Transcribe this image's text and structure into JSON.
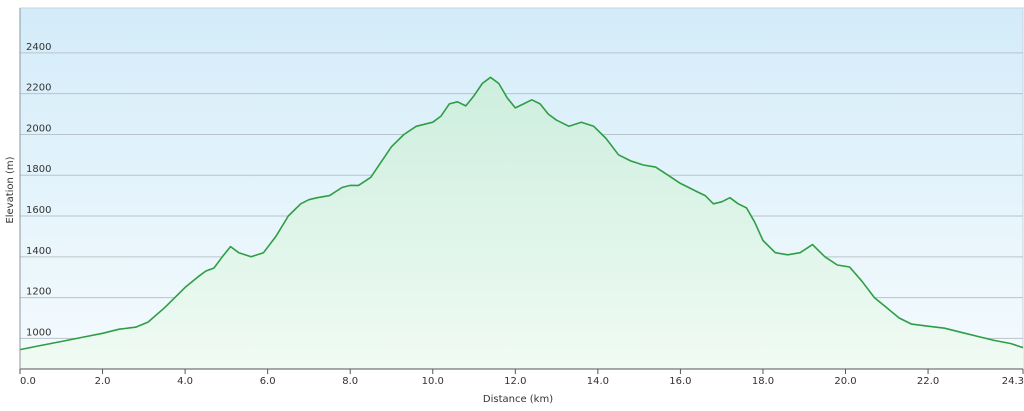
{
  "chart_data": {
    "type": "area",
    "xlabel": "Distance (km)",
    "ylabel": "Elevation (m)",
    "xlim": [
      0,
      24.3
    ],
    "ylim": [
      850,
      2620
    ],
    "x_ticks": [
      "0.0",
      "2.0",
      "4.0",
      "6.0",
      "8.0",
      "10.0",
      "12.0",
      "14.0",
      "16.0",
      "18.0",
      "20.0",
      "22.0",
      "24.3"
    ],
    "x_tick_values": [
      0,
      2,
      4,
      6,
      8,
      10,
      12,
      14,
      16,
      18,
      20,
      22,
      24.3
    ],
    "y_ticks": [
      "1000",
      "1200",
      "1400",
      "1600",
      "1800",
      "2000",
      "2200",
      "2400"
    ],
    "y_tick_values": [
      1000,
      1200,
      1400,
      1600,
      1800,
      2000,
      2200,
      2400
    ],
    "grid": true,
    "line_color": "#2e9e44",
    "series": [
      {
        "x": [
          0,
          0.5,
          1.0,
          1.5,
          2.0,
          2.4,
          2.8,
          3.1,
          3.5,
          4.0,
          4.3,
          4.5,
          4.7,
          4.9,
          5.1,
          5.3,
          5.6,
          5.9,
          6.2,
          6.5,
          6.8,
          7.0,
          7.2,
          7.5,
          7.8,
          8.0,
          8.2,
          8.5,
          8.8,
          9.0,
          9.3,
          9.6,
          10.0,
          10.2,
          10.4,
          10.6,
          10.8,
          11.0,
          11.2,
          11.4,
          11.6,
          11.8,
          12.0,
          12.2,
          12.4,
          12.6,
          12.8,
          13.0,
          13.3,
          13.6,
          13.9,
          14.2,
          14.5,
          14.8,
          15.1,
          15.4,
          15.7,
          16.0,
          16.2,
          16.4,
          16.6,
          16.8,
          17.0,
          17.2,
          17.4,
          17.6,
          17.8,
          18.0,
          18.3,
          18.6,
          18.9,
          19.2,
          19.5,
          19.8,
          20.1,
          20.4,
          20.7,
          21.0,
          21.3,
          21.6,
          22.0,
          22.4,
          22.8,
          23.2,
          23.6,
          24.0,
          24.3
        ],
        "y": [
          945,
          965,
          985,
          1005,
          1025,
          1045,
          1055,
          1080,
          1150,
          1250,
          1300,
          1330,
          1345,
          1400,
          1450,
          1420,
          1400,
          1420,
          1500,
          1600,
          1660,
          1680,
          1690,
          1700,
          1740,
          1750,
          1750,
          1790,
          1880,
          1940,
          2000,
          2040,
          2060,
          2090,
          2150,
          2160,
          2140,
          2190,
          2250,
          2280,
          2250,
          2180,
          2130,
          2150,
          2170,
          2150,
          2100,
          2070,
          2040,
          2060,
          2040,
          1980,
          1900,
          1870,
          1850,
          1840,
          1800,
          1760,
          1740,
          1720,
          1700,
          1660,
          1670,
          1690,
          1660,
          1640,
          1570,
          1480,
          1420,
          1410,
          1420,
          1460,
          1400,
          1360,
          1350,
          1280,
          1200,
          1150,
          1100,
          1070,
          1060,
          1050,
          1030,
          1010,
          990,
          975,
          955
        ]
      }
    ]
  }
}
